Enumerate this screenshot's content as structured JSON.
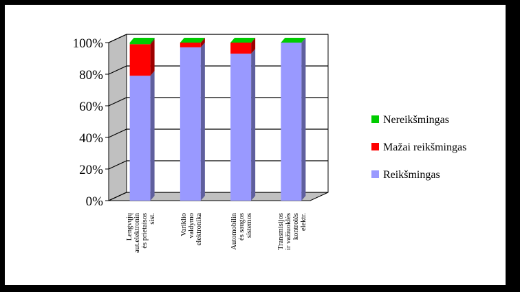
{
  "chart_data": {
    "type": "bar",
    "stacked": true,
    "percent": true,
    "three_d": true,
    "title": "",
    "xlabel": "",
    "ylabel": "",
    "ylim": [
      0,
      100
    ],
    "yticks": [
      "0%",
      "20%",
      "40%",
      "60%",
      "80%",
      "100%"
    ],
    "grid": true,
    "legend_position": "right",
    "categories": [
      [
        "Lengvųjų",
        "aut.elektronin",
        "ės prietaisos",
        "sist."
      ],
      [
        "Variklio",
        "valdymo",
        "elektronika"
      ],
      [
        "Automobilin",
        "ės saugos",
        "sistemos"
      ],
      [
        "Transmisijos",
        "ir važiuoklės",
        "kontrolės",
        "elektr."
      ]
    ],
    "series": [
      {
        "name": "Reikšmingas",
        "color": "#9999ff",
        "values": [
          79,
          97,
          93,
          100
        ]
      },
      {
        "name": "Mažai reikšmingas",
        "color": "#ff0000",
        "values": [
          20,
          3,
          7,
          0
        ]
      },
      {
        "name": "Nereikšmingas",
        "color": "#00cc00",
        "values": [
          1,
          0,
          0,
          0
        ]
      }
    ]
  }
}
